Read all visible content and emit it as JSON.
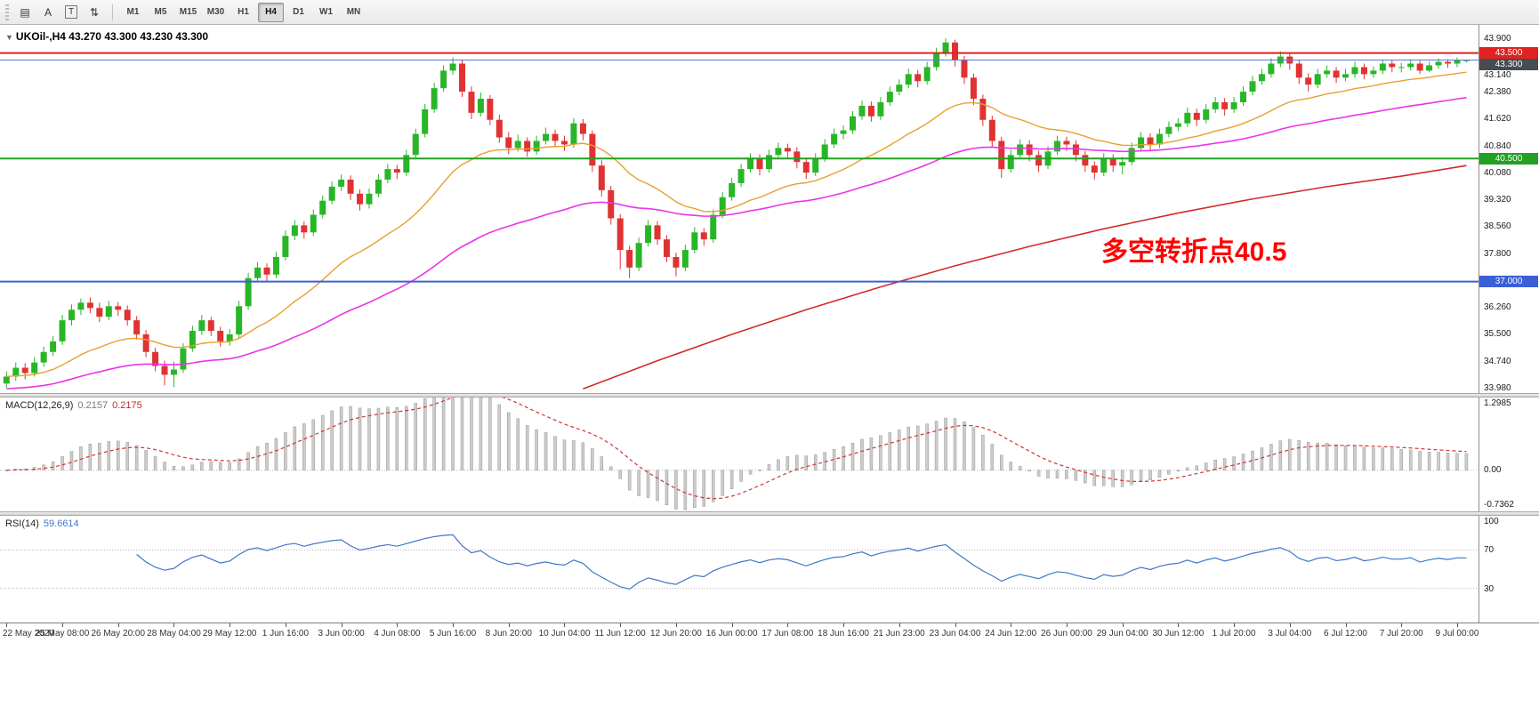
{
  "toolbar": {
    "tools": [
      {
        "name": "chart-tool",
        "glyph": "▤"
      },
      {
        "name": "cursor-tool",
        "glyph": "A"
      },
      {
        "name": "text-tool",
        "glyph": "T",
        "boxed": true
      },
      {
        "name": "indicators-tool",
        "glyph": "⇅"
      }
    ],
    "timeframes": [
      {
        "label": "M1"
      },
      {
        "label": "M5"
      },
      {
        "label": "M15"
      },
      {
        "label": "M30"
      },
      {
        "label": "H1"
      },
      {
        "label": "H4"
      },
      {
        "label": "D1"
      },
      {
        "label": "W1"
      },
      {
        "label": "MN"
      }
    ],
    "selected_timeframe": "H4"
  },
  "quote": {
    "collapse_glyph": "▼",
    "symbol": "UKOil-,H4",
    "ohlc": "43.270 43.300 43.230 43.300"
  },
  "annotation": {
    "text": "多空转折点40.5",
    "color": "#FF0000"
  },
  "macd_panel": {
    "label": "MACD(12,26,9)",
    "value_main": "0.2157",
    "value_signal": "0.2175",
    "axis": [
      "1.2985",
      "0.00",
      "-0.7362"
    ]
  },
  "rsi_panel": {
    "label": "RSI(14)",
    "value": "59.6614",
    "axis": [
      "100",
      "70",
      "30"
    ]
  },
  "chart_data": {
    "type": "candlestick",
    "symbol": "UKOil-",
    "timeframe": "H4",
    "ylim": [
      33.83,
      44.3
    ],
    "y_axis_labels": [
      "43.900",
      "43.140",
      "42.380",
      "41.620",
      "40.840",
      "40.080",
      "39.320",
      "38.560",
      "37.800",
      "36.260",
      "35.500",
      "34.740",
      "33.980"
    ],
    "badges": [
      {
        "value": "43.500",
        "color": "#e02222"
      },
      {
        "value": "43.300",
        "color": "#474b52"
      },
      {
        "value": "40.500",
        "color": "#22a022"
      },
      {
        "value": "37.000",
        "color": "#3a5fd9"
      }
    ],
    "hlines": [
      {
        "price": 43.5,
        "color": "#e02222",
        "width": 2
      },
      {
        "price": 43.3,
        "color": "#5577dd",
        "width": 1
      },
      {
        "price": 40.5,
        "color": "#22a022",
        "width": 2
      },
      {
        "price": 37.0,
        "color": "#3a5fd9",
        "width": 2
      }
    ],
    "current_price": 43.3,
    "colors": {
      "up": "#28b628",
      "down": "#e03232",
      "background": "#ffffff"
    },
    "ma_fast": {
      "period": 21,
      "color": "#e8a030"
    },
    "ma_mid": {
      "period": 55,
      "color": "#e835e8"
    },
    "ma_slow": {
      "color": "#d42a2a",
      "points": [
        [
          62,
          33.95
        ],
        [
          70,
          34.75
        ],
        [
          78,
          35.5
        ],
        [
          86,
          36.2
        ],
        [
          94,
          36.85
        ],
        [
          102,
          37.45
        ],
        [
          110,
          38.0
        ],
        [
          118,
          38.5
        ],
        [
          126,
          38.95
        ],
        [
          134,
          39.35
        ],
        [
          142,
          39.7
        ],
        [
          150,
          40.0
        ],
        [
          157,
          40.3
        ]
      ]
    },
    "macd": {
      "fast": 12,
      "slow": 26,
      "signal": 9,
      "ylim": [
        -0.7362,
        1.2985
      ],
      "hist_color": "#cccccc",
      "hist_stroke": "#999999",
      "signal_color": "#d23333",
      "current_main": 0.2157,
      "current_signal": 0.2175
    },
    "rsi": {
      "period": 14,
      "levels": [
        70,
        30
      ],
      "color": "#3f77c9",
      "current": 59.6614,
      "ylim": [
        0,
        100
      ]
    },
    "x_label_step": 6,
    "x_labels": [
      "22 May 2020",
      "25 May 08:00",
      "26 May 20:00",
      "28 May 04:00",
      "29 May 12:00",
      "1 Jun 16:00",
      "3 Jun 00:00",
      "4 Jun 08:00",
      "5 Jun 16:00",
      "8 Jun 20:00",
      "10 Jun 04:00",
      "11 Jun 12:00",
      "12 Jun 20:00",
      "16 Jun 00:00",
      "17 Jun 08:00",
      "18 Jun 16:00",
      "21 Jun 23:00",
      "23 Jun 04:00",
      "24 Jun 12:00",
      "26 Jun 00:00",
      "29 Jun 04:00",
      "30 Jun 12:00",
      "1 Jul 20:00",
      "3 Jul 04:00",
      "6 Jul 12:00",
      "7 Jul 20:00",
      "9 Jul 00:00"
    ],
    "candles": [
      [
        34.1,
        34.45,
        33.98,
        34.3
      ],
      [
        34.3,
        34.7,
        34.18,
        34.55
      ],
      [
        34.55,
        34.68,
        34.22,
        34.4
      ],
      [
        34.4,
        34.85,
        34.3,
        34.7
      ],
      [
        34.7,
        35.15,
        34.58,
        35.0
      ],
      [
        35.0,
        35.45,
        34.88,
        35.3
      ],
      [
        35.3,
        36.05,
        35.2,
        35.9
      ],
      [
        35.9,
        36.35,
        35.75,
        36.2
      ],
      [
        36.2,
        36.52,
        36.05,
        36.4
      ],
      [
        36.4,
        36.55,
        36.1,
        36.25
      ],
      [
        36.25,
        36.4,
        35.85,
        36.0
      ],
      [
        36.0,
        36.45,
        35.9,
        36.3
      ],
      [
        36.3,
        36.42,
        36.02,
        36.2
      ],
      [
        36.2,
        36.32,
        35.75,
        35.9
      ],
      [
        35.9,
        36.02,
        35.35,
        35.5
      ],
      [
        35.5,
        35.62,
        34.85,
        35.0
      ],
      [
        35.0,
        35.12,
        34.45,
        34.6
      ],
      [
        34.6,
        34.75,
        34.05,
        34.35
      ],
      [
        34.35,
        34.72,
        34.0,
        34.5
      ],
      [
        34.5,
        35.25,
        34.4,
        35.1
      ],
      [
        35.1,
        35.75,
        35.0,
        35.6
      ],
      [
        35.6,
        36.05,
        35.48,
        35.9
      ],
      [
        35.9,
        36.0,
        35.45,
        35.6
      ],
      [
        35.6,
        35.72,
        35.15,
        35.3
      ],
      [
        35.3,
        35.65,
        35.18,
        35.5
      ],
      [
        35.5,
        36.45,
        35.4,
        36.3
      ],
      [
        36.3,
        37.25,
        36.2,
        37.1
      ],
      [
        37.1,
        37.55,
        36.98,
        37.4
      ],
      [
        37.4,
        37.52,
        37.02,
        37.2
      ],
      [
        37.2,
        37.85,
        37.1,
        37.7
      ],
      [
        37.7,
        38.45,
        37.6,
        38.3
      ],
      [
        38.3,
        38.75,
        38.18,
        38.6
      ],
      [
        38.6,
        38.72,
        38.22,
        38.4
      ],
      [
        38.4,
        39.05,
        38.3,
        38.9
      ],
      [
        38.9,
        39.45,
        38.8,
        39.3
      ],
      [
        39.3,
        39.85,
        39.2,
        39.7
      ],
      [
        39.7,
        40.05,
        39.58,
        39.9
      ],
      [
        39.9,
        40.02,
        39.32,
        39.5
      ],
      [
        39.5,
        39.62,
        39.02,
        39.2
      ],
      [
        39.2,
        39.65,
        39.08,
        39.5
      ],
      [
        39.5,
        40.05,
        39.4,
        39.9
      ],
      [
        39.9,
        40.35,
        39.8,
        40.2
      ],
      [
        40.2,
        40.32,
        39.92,
        40.1
      ],
      [
        40.1,
        40.75,
        40.0,
        40.6
      ],
      [
        40.6,
        41.35,
        40.5,
        41.2
      ],
      [
        41.2,
        42.05,
        41.1,
        41.9
      ],
      [
        41.9,
        42.65,
        41.8,
        42.5
      ],
      [
        42.5,
        43.15,
        42.4,
        43.0
      ],
      [
        43.0,
        43.38,
        42.88,
        43.2
      ],
      [
        43.2,
        43.3,
        42.25,
        42.4
      ],
      [
        42.4,
        42.55,
        41.62,
        41.8
      ],
      [
        41.8,
        42.38,
        41.7,
        42.2
      ],
      [
        42.2,
        42.3,
        41.45,
        41.6
      ],
      [
        41.6,
        41.75,
        40.95,
        41.1
      ],
      [
        41.1,
        41.25,
        40.62,
        40.8
      ],
      [
        40.8,
        41.18,
        40.7,
        41.0
      ],
      [
        41.0,
        41.1,
        40.55,
        40.7
      ],
      [
        40.7,
        41.15,
        40.6,
        41.0
      ],
      [
        41.0,
        41.38,
        40.9,
        41.2
      ],
      [
        41.2,
        41.32,
        40.85,
        41.0
      ],
      [
        41.0,
        41.15,
        40.72,
        40.9
      ],
      [
        40.9,
        41.65,
        40.8,
        41.5
      ],
      [
        41.5,
        41.62,
        41.02,
        41.2
      ],
      [
        41.2,
        41.3,
        40.12,
        40.3
      ],
      [
        40.3,
        40.45,
        39.42,
        39.6
      ],
      [
        39.6,
        39.72,
        38.62,
        38.8
      ],
      [
        38.8,
        38.92,
        37.35,
        37.9
      ],
      [
        37.9,
        38.02,
        37.1,
        37.4
      ],
      [
        37.4,
        38.25,
        37.3,
        38.1
      ],
      [
        38.1,
        38.75,
        38.0,
        38.6
      ],
      [
        38.6,
        38.72,
        38.05,
        38.2
      ],
      [
        38.2,
        38.32,
        37.55,
        37.7
      ],
      [
        37.7,
        37.82,
        37.15,
        37.4
      ],
      [
        37.4,
        38.05,
        37.3,
        37.9
      ],
      [
        37.9,
        38.55,
        37.8,
        38.4
      ],
      [
        38.4,
        38.52,
        38.02,
        38.2
      ],
      [
        38.2,
        39.05,
        38.1,
        38.9
      ],
      [
        38.9,
        39.55,
        38.8,
        39.4
      ],
      [
        39.4,
        39.95,
        39.3,
        39.8
      ],
      [
        39.8,
        40.35,
        39.7,
        40.2
      ],
      [
        40.2,
        40.65,
        40.1,
        40.5
      ],
      [
        40.5,
        40.62,
        40.02,
        40.2
      ],
      [
        40.2,
        40.75,
        40.1,
        40.6
      ],
      [
        40.6,
        40.95,
        40.5,
        40.8
      ],
      [
        40.8,
        40.92,
        40.52,
        40.7
      ],
      [
        40.7,
        40.82,
        40.22,
        40.4
      ],
      [
        40.4,
        40.52,
        39.92,
        40.1
      ],
      [
        40.1,
        40.65,
        40.0,
        40.5
      ],
      [
        40.5,
        41.05,
        40.4,
        40.9
      ],
      [
        40.9,
        41.35,
        40.8,
        41.2
      ],
      [
        41.2,
        41.45,
        41.05,
        41.3
      ],
      [
        41.3,
        41.85,
        41.2,
        41.7
      ],
      [
        41.7,
        42.15,
        41.6,
        42.0
      ],
      [
        42.0,
        42.12,
        41.55,
        41.7
      ],
      [
        41.7,
        42.25,
        41.6,
        42.1
      ],
      [
        42.1,
        42.55,
        42.0,
        42.4
      ],
      [
        42.4,
        42.75,
        42.3,
        42.6
      ],
      [
        42.6,
        43.05,
        42.5,
        42.9
      ],
      [
        42.9,
        43.02,
        42.52,
        42.7
      ],
      [
        42.7,
        43.25,
        42.6,
        43.1
      ],
      [
        43.1,
        43.65,
        43.0,
        43.5
      ],
      [
        43.5,
        43.92,
        43.4,
        43.8
      ],
      [
        43.8,
        43.88,
        43.12,
        43.3
      ],
      [
        43.3,
        43.42,
        42.62,
        42.8
      ],
      [
        42.8,
        42.92,
        42.02,
        42.2
      ],
      [
        42.2,
        42.32,
        41.42,
        41.6
      ],
      [
        41.6,
        41.72,
        40.82,
        41.0
      ],
      [
        41.0,
        41.12,
        39.95,
        40.2
      ],
      [
        40.2,
        40.75,
        40.1,
        40.6
      ],
      [
        40.6,
        41.05,
        40.5,
        40.9
      ],
      [
        40.9,
        41.02,
        40.42,
        40.6
      ],
      [
        40.6,
        40.72,
        40.12,
        40.3
      ],
      [
        40.3,
        40.85,
        40.2,
        40.7
      ],
      [
        40.7,
        41.15,
        40.6,
        41.0
      ],
      [
        41.0,
        41.12,
        40.72,
        40.9
      ],
      [
        40.9,
        41.02,
        40.42,
        40.6
      ],
      [
        40.6,
        40.72,
        40.12,
        40.3
      ],
      [
        40.3,
        40.42,
        39.9,
        40.1
      ],
      [
        40.1,
        40.65,
        40.0,
        40.5
      ],
      [
        40.5,
        40.62,
        40.12,
        40.3
      ],
      [
        40.3,
        40.55,
        40.05,
        40.4
      ],
      [
        40.4,
        40.95,
        40.3,
        40.8
      ],
      [
        40.8,
        41.25,
        40.7,
        41.1
      ],
      [
        41.1,
        41.22,
        40.72,
        40.9
      ],
      [
        40.9,
        41.35,
        40.8,
        41.2
      ],
      [
        41.2,
        41.55,
        41.1,
        41.4
      ],
      [
        41.4,
        41.65,
        41.28,
        41.5
      ],
      [
        41.5,
        41.95,
        41.4,
        41.8
      ],
      [
        41.8,
        41.92,
        41.42,
        41.6
      ],
      [
        41.6,
        42.05,
        41.5,
        41.9
      ],
      [
        41.9,
        42.25,
        41.8,
        42.1
      ],
      [
        42.1,
        42.22,
        41.72,
        41.9
      ],
      [
        41.9,
        42.25,
        41.8,
        42.1
      ],
      [
        42.1,
        42.55,
        42.0,
        42.4
      ],
      [
        42.4,
        42.85,
        42.3,
        42.7
      ],
      [
        42.7,
        43.05,
        42.6,
        42.9
      ],
      [
        42.9,
        43.35,
        42.8,
        43.2
      ],
      [
        43.2,
        43.55,
        43.1,
        43.4
      ],
      [
        43.4,
        43.5,
        43.02,
        43.2
      ],
      [
        43.2,
        43.3,
        42.62,
        42.8
      ],
      [
        42.8,
        42.92,
        42.4,
        42.6
      ],
      [
        42.6,
        43.05,
        42.5,
        42.9
      ],
      [
        42.9,
        43.15,
        42.8,
        43.0
      ],
      [
        43.0,
        43.1,
        42.65,
        42.8
      ],
      [
        42.8,
        43.05,
        42.7,
        42.9
      ],
      [
        42.9,
        43.25,
        42.8,
        43.1
      ],
      [
        43.1,
        43.2,
        42.75,
        42.9
      ],
      [
        42.9,
        43.12,
        42.8,
        43.0
      ],
      [
        43.0,
        43.32,
        42.9,
        43.2
      ],
      [
        43.2,
        43.3,
        42.95,
        43.1
      ],
      [
        43.1,
        43.22,
        42.95,
        43.1
      ],
      [
        43.1,
        43.32,
        43.0,
        43.2
      ],
      [
        43.2,
        43.28,
        42.9,
        43.0
      ],
      [
        43.0,
        43.25,
        42.95,
        43.15
      ],
      [
        43.15,
        43.35,
        43.05,
        43.25
      ],
      [
        43.25,
        43.32,
        43.08,
        43.2
      ],
      [
        43.2,
        43.38,
        43.1,
        43.3
      ],
      [
        43.27,
        43.3,
        43.23,
        43.3
      ]
    ]
  }
}
